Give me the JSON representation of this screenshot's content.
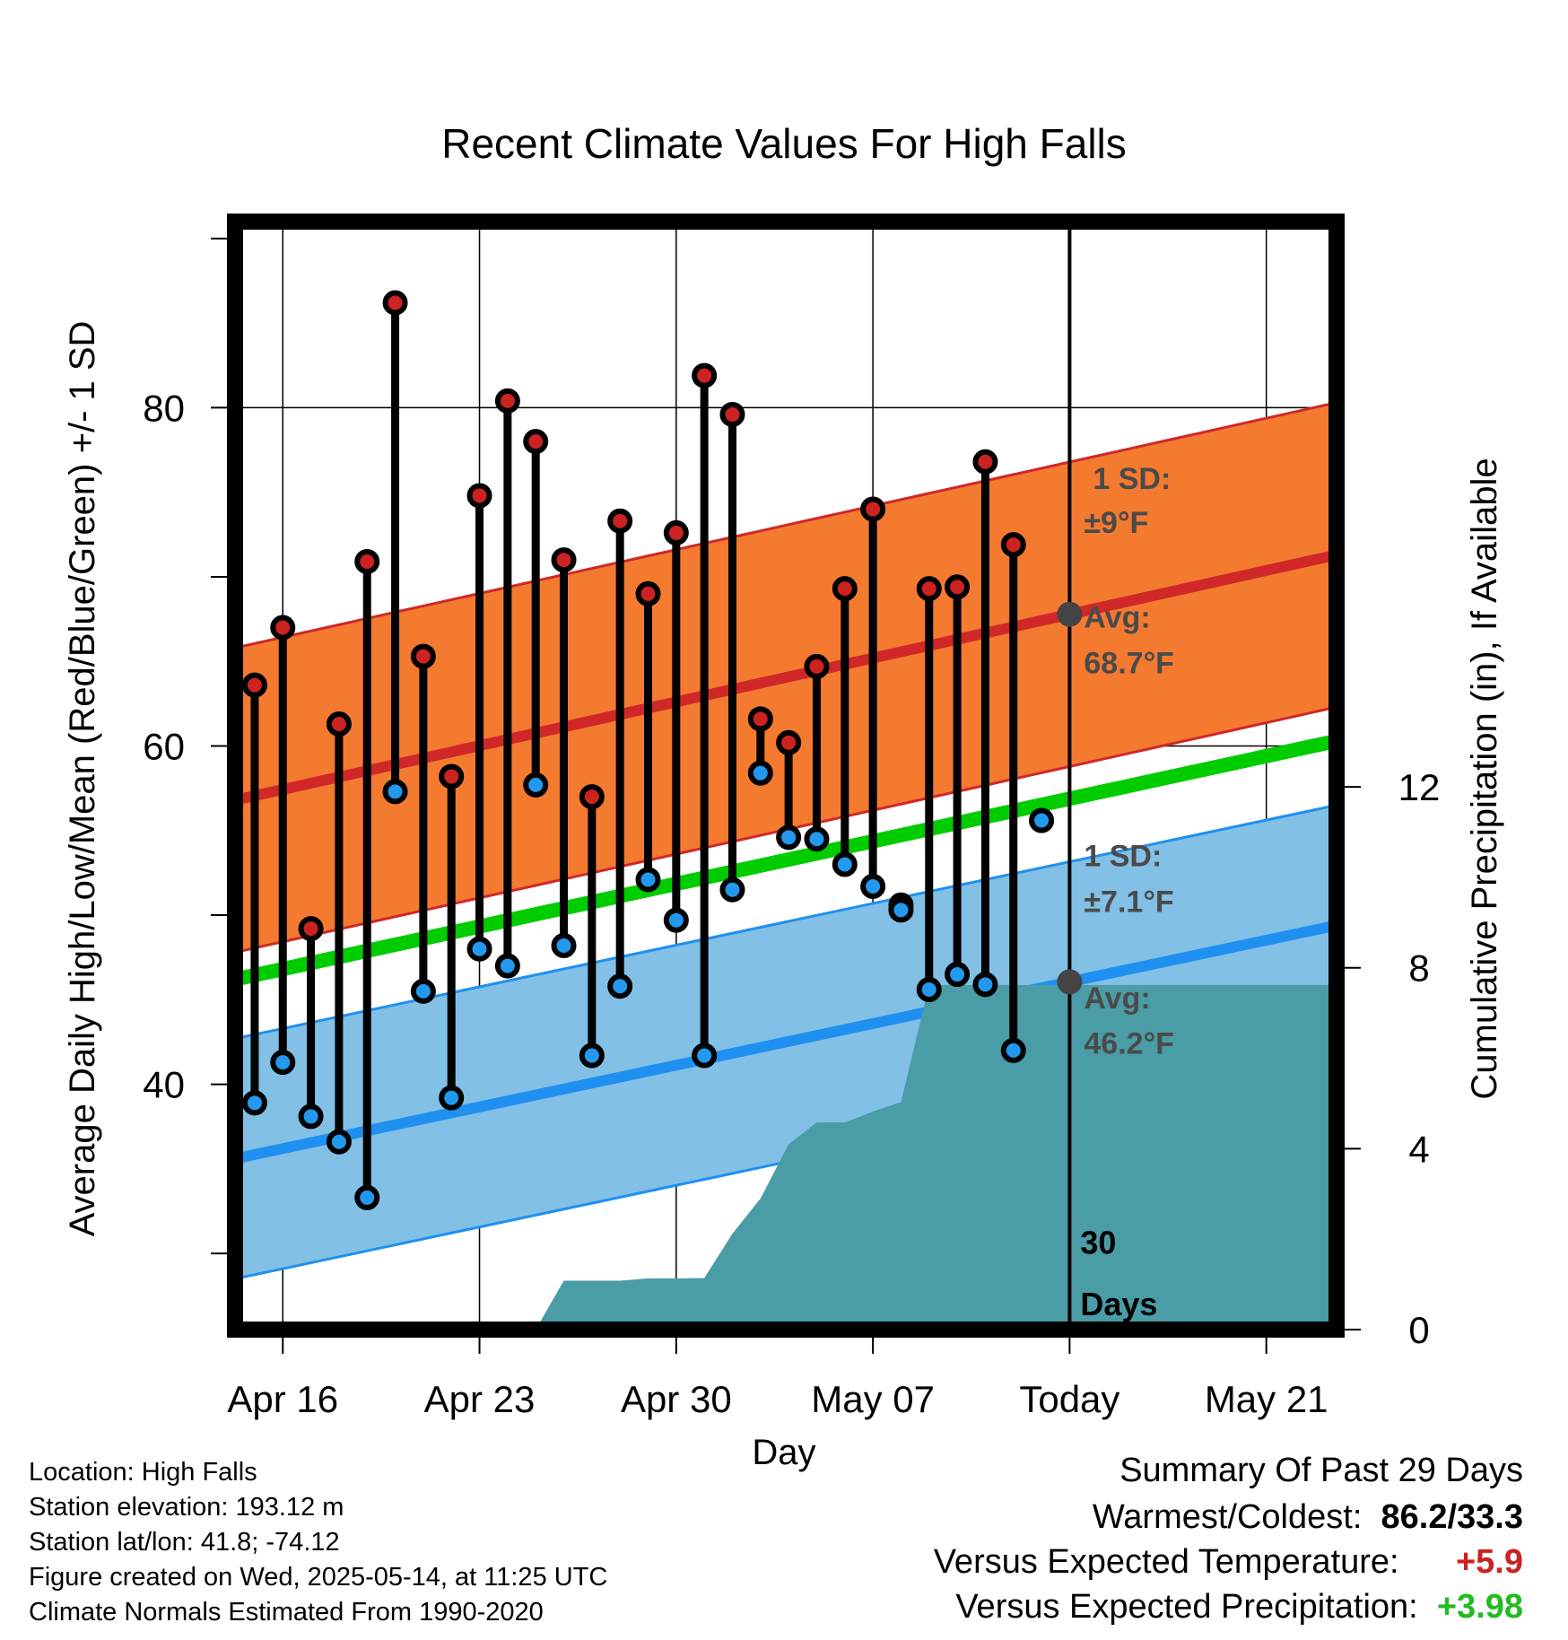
{
  "chart_data": {
    "type": "line",
    "title": "Recent Climate Values For High Falls",
    "xlabel": "Day",
    "ylabel": "Average Daily High/Low/Mean (Red/Blue/Green) +/- 1 SD",
    "y2label": "Cumulative Precipitation (in), If Available",
    "x_ticks": [
      "Apr 16",
      "Apr 23",
      "Apr 30",
      "May 07",
      "Today",
      "May 21"
    ],
    "y_ticks": [
      "40",
      "60",
      "80"
    ],
    "y2_ticks": [
      "0",
      "4",
      "8",
      "12"
    ],
    "ylim": [
      25.5,
      91
    ],
    "y2lim": [
      0,
      24.5
    ],
    "x_range_days": [
      -29.7,
      9.5
    ],
    "today_label_days": "30\nDays",
    "normals": {
      "high_avg": {
        "start": 56.8,
        "end": 71.3
      },
      "high_sd": 9,
      "low_avg": {
        "start": 35.6,
        "end": 49.4
      },
      "low_sd": 7.1,
      "mean": {
        "start": 46.2,
        "end": 60.3
      }
    },
    "daily": {
      "day_offsets": [
        -29,
        -28,
        -27,
        -26,
        -25,
        -24,
        -23,
        -22,
        -21,
        -20,
        -19,
        -18,
        -17,
        -16,
        -15,
        -14,
        -13,
        -12,
        -11,
        -10,
        -9,
        -8,
        -7,
        -6,
        -5,
        -4,
        -3,
        -2,
        -1
      ],
      "high": [
        63.6,
        67.0,
        49.2,
        61.3,
        70.9,
        86.2,
        65.3,
        58.2,
        74.8,
        80.4,
        78.0,
        71.0,
        57.0,
        73.3,
        69.0,
        72.6,
        81.9,
        79.6,
        61.6,
        60.2,
        64.7,
        69.3,
        74.0,
        50.6,
        69.3,
        69.4,
        76.8,
        71.9,
        55.6
      ],
      "low": [
        38.9,
        41.3,
        38.1,
        36.6,
        33.3,
        57.3,
        45.5,
        39.2,
        48.0,
        47.0,
        57.7,
        48.2,
        41.7,
        45.8,
        52.1,
        49.7,
        41.7,
        51.5,
        58.4,
        54.6,
        54.5,
        53.0,
        51.7,
        50.3,
        45.6,
        46.5,
        45.9,
        42.0,
        55.6
      ]
    },
    "precip_cumulative": {
      "x": [
        -19.0,
        -18.0,
        -17.0,
        -16.0,
        -15.0,
        -14.0,
        -13.0,
        -12.0,
        -11.0,
        -10.0,
        -9.0,
        -8.0,
        -7.0,
        -6.0,
        -5.0,
        -4.0,
        -3.0,
        -2.0,
        -1.0,
        0,
        9.5
      ],
      "y": [
        0,
        1.08,
        1.08,
        1.08,
        1.13,
        1.13,
        1.14,
        2.12,
        2.9,
        4.1,
        4.58,
        4.58,
        4.82,
        5.03,
        7.62,
        7.62,
        7.62,
        7.62,
        7.62,
        7.62,
        7.62
      ]
    },
    "annotations": {
      "high_sd": [
        "1 SD:",
        "±9°F"
      ],
      "high_avg": [
        "Avg:",
        "68.7°F"
      ],
      "low_sd": [
        "1 SD:",
        "±7.1°F"
      ],
      "low_avg": [
        "Avg:",
        "46.2°F"
      ]
    },
    "colors": {
      "high_band": "#f47a30",
      "high_line": "#d02828",
      "low_band": "#82c0e6",
      "low_line": "#2090f0",
      "mean_line": "#00cc00",
      "precip": "#4a9ca6",
      "high_dot": "#cc2222",
      "low_dot": "#2299ee"
    }
  },
  "footer": {
    "location": "Location: High Falls",
    "elevation": "Station elevation: 193.12 m",
    "latlon": "Station lat/lon: 41.8; -74.12",
    "created": "Figure created on Wed, 2025-05-14, at 11:25 UTC",
    "normals": "Climate Normals Estimated From 1990-2020"
  },
  "summary": {
    "title": "Summary Of Past 29 Days",
    "warmest_label": "Warmest/Coldest:",
    "warmest_value": "86.2/33.3",
    "temp_label": "Versus Expected Temperature:",
    "temp_value": "+5.9",
    "precip_label": "Versus Expected Precipitation:",
    "precip_value": "+3.98"
  }
}
